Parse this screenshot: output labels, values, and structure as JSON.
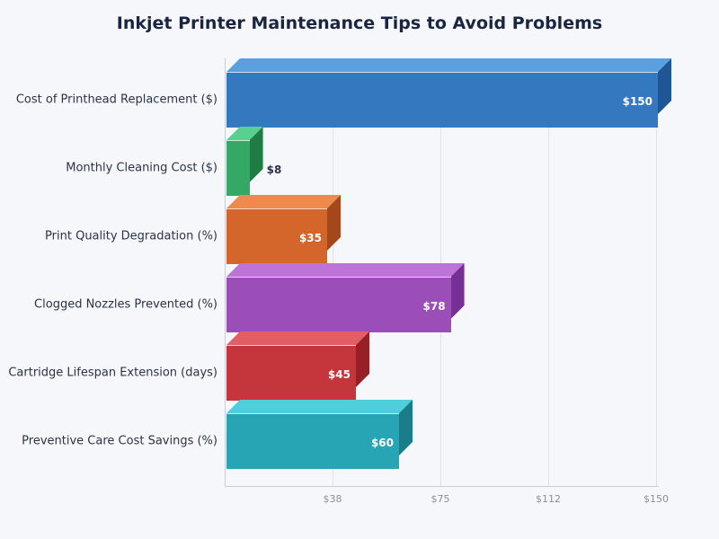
{
  "chart_data": {
    "type": "bar",
    "orientation": "horizontal",
    "title": "Inkjet Printer Maintenance Tips to Avoid Problems",
    "xlabel": "",
    "ylabel": "",
    "xlim": [
      0,
      150
    ],
    "grid": true,
    "legend": null,
    "x_ticks": [
      "$38",
      "$75",
      "$112",
      "$150"
    ],
    "categories": [
      "Cost of Printhead Replacement ($)",
      "Monthly Cleaning Cost ($)",
      "Print Quality Degradation (%)",
      "Clogged Nozzles Prevented (%)",
      "Cartridge Lifespan Extension (days)",
      "Preventive Care Cost Savings (%)"
    ],
    "values": [
      150,
      8,
      35,
      78,
      45,
      60
    ],
    "value_labels": [
      "$150",
      "$8",
      "$35",
      "$78",
      "$45",
      "$60"
    ],
    "colors": [
      "#3478c0",
      "#34a865",
      "#d4662c",
      "#9b4db8",
      "#c4363c",
      "#28a5b5"
    ]
  },
  "bars": [
    {
      "front": "#3478c0",
      "top": "#5aa0e0",
      "side": "#1f5796",
      "label_outside": false
    },
    {
      "front": "#34a865",
      "top": "#58d08e",
      "side": "#1f7d44",
      "label_outside": true
    },
    {
      "front": "#d4662c",
      "top": "#ee8a4e",
      "side": "#a4471a",
      "label_outside": false
    },
    {
      "front": "#9b4db8",
      "top": "#bd73d8",
      "side": "#762f94",
      "label_outside": false
    },
    {
      "front": "#c4363c",
      "top": "#e25e64",
      "side": "#962026",
      "label_outside": false
    },
    {
      "front": "#28a5b5",
      "top": "#4fcfdc",
      "side": "#1a7d8a",
      "label_outside": false
    }
  ]
}
